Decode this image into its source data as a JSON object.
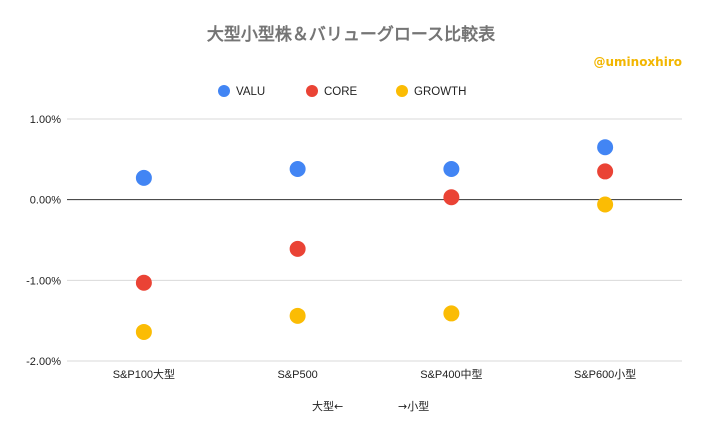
{
  "chart_data": {
    "type": "scatter",
    "title": "大型小型株＆バリューグロース比較表",
    "credit": "@uminoxhiro",
    "xlabel_left": "大型←",
    "xlabel_right": "→小型",
    "categories": [
      "S&P100大型",
      "S&P500",
      "S&P400中型",
      "S&P600小型"
    ],
    "ylim": [
      -2.0,
      1.0
    ],
    "yticks": [
      1.0,
      0.0,
      -1.0,
      -2.0
    ],
    "ytick_labels": [
      "1.00%",
      "0.00%",
      "-1.00%",
      "-2.00%"
    ],
    "legend_position": "top-center",
    "series": [
      {
        "name": "VALU",
        "color": "#4285f4",
        "values": [
          0.27,
          0.38,
          0.38,
          0.65
        ]
      },
      {
        "name": "CORE",
        "color": "#ea4335",
        "values": [
          -1.03,
          -0.61,
          0.03,
          0.35
        ]
      },
      {
        "name": "GROWTH",
        "color": "#fbbc04",
        "values": [
          -1.64,
          -1.44,
          -1.41,
          -0.06
        ]
      }
    ]
  }
}
